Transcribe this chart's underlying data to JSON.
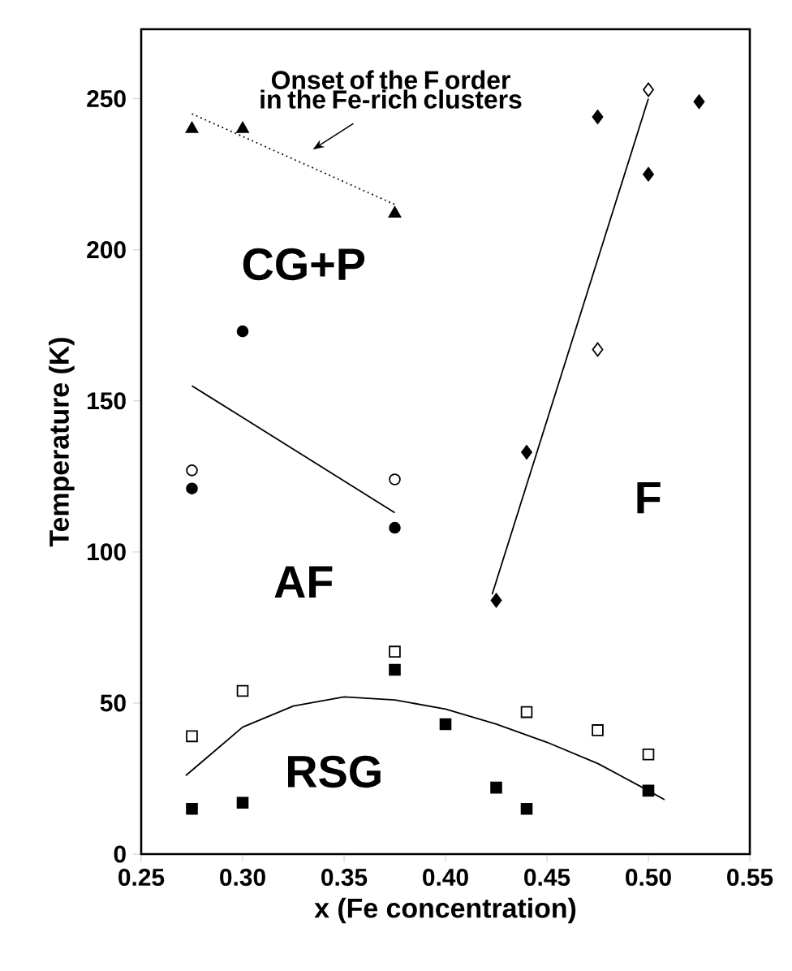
{
  "chart_data": {
    "type": "scatter",
    "xlabel": "x (Fe concentration)",
    "ylabel": "Temperature (K)",
    "xlim": [
      0.25,
      0.55
    ],
    "ylim": [
      0,
      273
    ],
    "xticks": [
      {
        "value": 0.25,
        "label": "0.25"
      },
      {
        "value": 0.3,
        "label": "0.30"
      },
      {
        "value": 0.35,
        "label": "0.35"
      },
      {
        "value": 0.4,
        "label": "0.40"
      },
      {
        "value": 0.45,
        "label": "0.45"
      },
      {
        "value": 0.5,
        "label": "0.50"
      },
      {
        "value": 0.55,
        "label": "0.55"
      }
    ],
    "yticks": [
      0,
      50,
      100,
      150,
      200,
      250
    ],
    "series": [
      {
        "marker": "triangle",
        "color": "#000000",
        "x": [
          0.275,
          0.3,
          0.375
        ],
        "values": [
          240,
          240,
          212
        ]
      },
      {
        "type": "line",
        "marker": "none",
        "line_style": "dotted",
        "color": "#000000",
        "x": [
          0.275,
          0.375
        ],
        "values": [
          245,
          215
        ]
      },
      {
        "marker": "circle",
        "color": "#000000",
        "x": [
          0.275,
          0.3,
          0.375
        ],
        "values": [
          121,
          173,
          108
        ]
      },
      {
        "marker": "circle",
        "color": "#ffffff",
        "x": [
          0.275,
          0.375
        ],
        "values": [
          127,
          124
        ]
      },
      {
        "type": "line",
        "marker": "none",
        "line_style": "solid",
        "color": "#000000",
        "x": [
          0.275,
          0.375
        ],
        "values": [
          155,
          113
        ]
      },
      {
        "marker": "diamond",
        "color": "#000000",
        "x": [
          0.425,
          0.44,
          0.475,
          0.5,
          0.525
        ],
        "values": [
          84,
          133,
          244,
          225,
          249
        ]
      },
      {
        "marker": "diamond",
        "color": "#ffffff",
        "x": [
          0.475,
          0.5
        ],
        "values": [
          167,
          253
        ]
      },
      {
        "type": "line",
        "marker": "none",
        "line_style": "solid",
        "color": "#000000",
        "x": [
          0.423,
          0.5
        ],
        "values": [
          86,
          250
        ]
      },
      {
        "marker": "square",
        "color": "#ffffff",
        "x": [
          0.275,
          0.3,
          0.375,
          0.44,
          0.475,
          0.5
        ],
        "values": [
          39,
          54,
          67,
          47,
          41,
          33
        ]
      },
      {
        "marker": "square",
        "color": "#000000",
        "x": [
          0.275,
          0.3,
          0.375,
          0.4,
          0.425,
          0.44,
          0.5
        ],
        "values": [
          15,
          17,
          61,
          43,
          22,
          15,
          21
        ]
      },
      {
        "type": "line",
        "marker": "none",
        "line_style": "solid",
        "color": "#000000",
        "x": [
          0.272,
          0.3,
          0.325,
          0.35,
          0.375,
          0.4,
          0.425,
          0.45,
          0.475,
          0.5,
          0.508
        ],
        "values": [
          26,
          42,
          49,
          52,
          51,
          48,
          43,
          37,
          30,
          21,
          18
        ]
      }
    ],
    "annotations": [
      "Onset of the F order in the Fe-rich clusters",
      "CG+P",
      "AF",
      "F",
      "RSG"
    ]
  }
}
